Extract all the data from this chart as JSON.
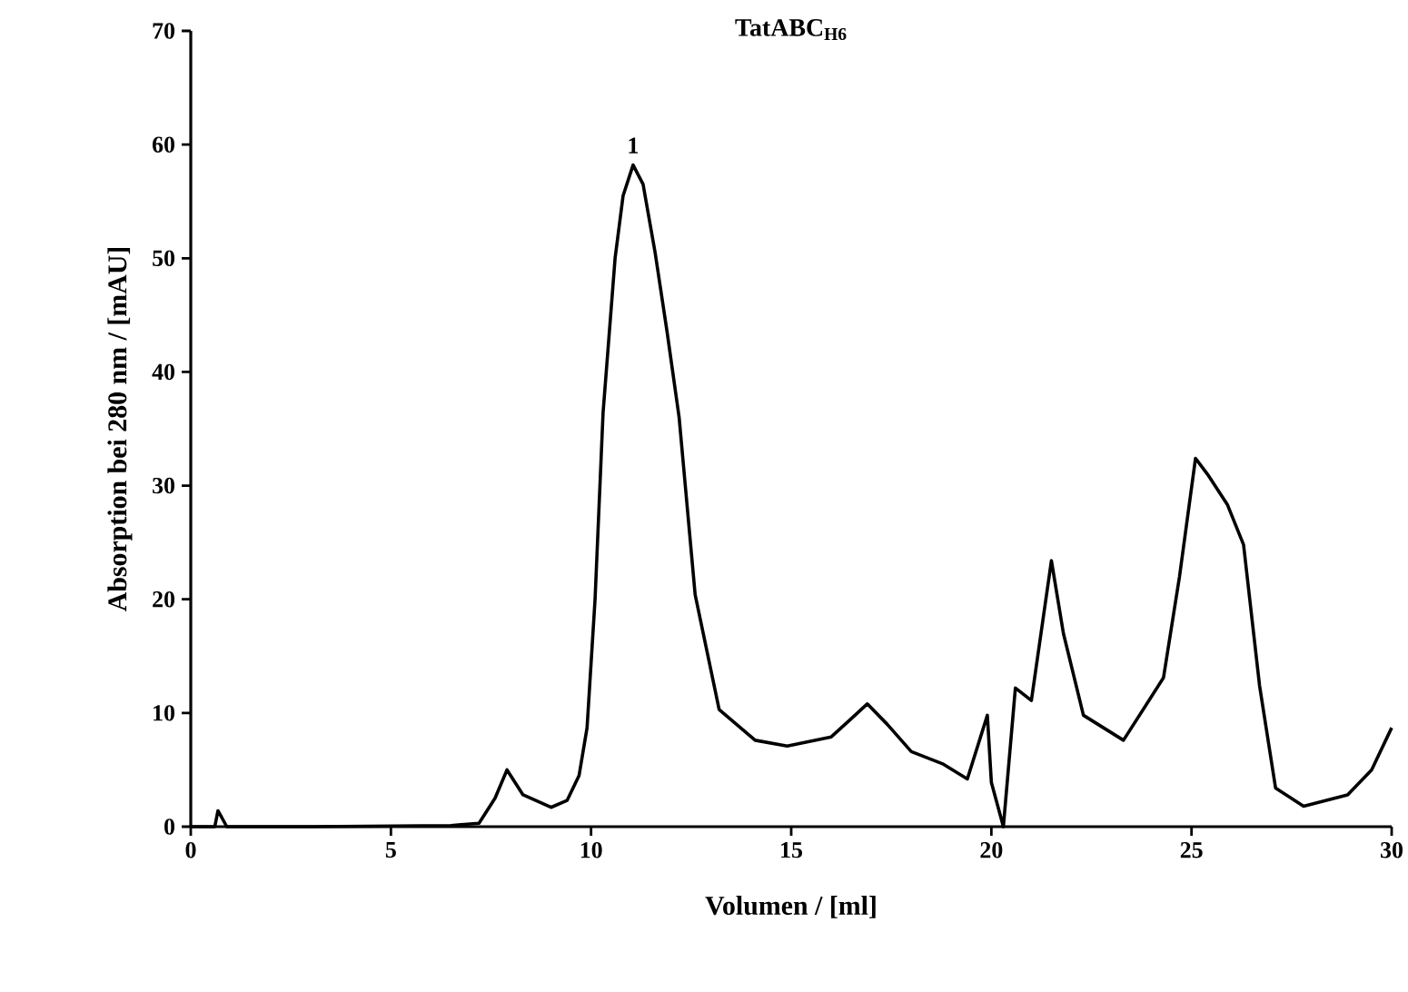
{
  "chart_data": {
    "type": "line",
    "title": "TatABC$_{H6}$",
    "xlabel": "Volumen / [ml]",
    "ylabel": "Absorption bei 280 nm / [mAU]",
    "xlim": [
      0,
      30
    ],
    "ylim": [
      0,
      70
    ],
    "xticks": [
      0,
      5,
      10,
      15,
      20,
      25,
      30
    ],
    "yticks": [
      0,
      10,
      20,
      30,
      40,
      50,
      60,
      70
    ],
    "grid": false,
    "marker": "none",
    "line_style": "solid",
    "annotations": [
      {
        "text": "1",
        "x": 11.05,
        "y": 58.2
      }
    ],
    "series": [
      {
        "color": "#000000",
        "x": [
          0,
          0.6,
          0.68,
          0.9,
          3,
          6.5,
          7.2,
          7.6,
          7.9,
          8.3,
          9.0,
          9.4,
          9.7,
          9.9,
          10.1,
          10.3,
          10.6,
          10.8,
          11.05,
          11.3,
          11.6,
          11.9,
          12.2,
          12.6,
          13.2,
          14.1,
          14.9,
          16.0,
          16.5,
          16.9,
          17.4,
          18.0,
          18.8,
          19.4,
          19.9,
          20.0,
          20.3,
          20.6,
          21.0,
          21.5,
          21.8,
          22.3,
          23.3,
          24.3,
          24.7,
          25.1,
          25.4,
          25.9,
          26.3,
          26.7,
          27.1,
          27.8,
          28.9,
          29.5,
          30
        ],
        "values": [
          0,
          0,
          1.4,
          0,
          0,
          0.1,
          0.3,
          2.5,
          5.0,
          2.8,
          1.7,
          2.3,
          4.5,
          8.7,
          20,
          36.4,
          50,
          55.5,
          58.2,
          56.5,
          50.5,
          43.5,
          36,
          20.4,
          10.3,
          7.6,
          7.1,
          7.9,
          9.5,
          10.8,
          9.0,
          6.6,
          5.5,
          4.2,
          9.8,
          3.9,
          0,
          12.2,
          11.1,
          23.4,
          17,
          9.8,
          7.6,
          13.1,
          22.0,
          32.4,
          31,
          28.3,
          24.8,
          12.4,
          3.4,
          1.8,
          2.8,
          5,
          8.7
        ]
      }
    ]
  }
}
